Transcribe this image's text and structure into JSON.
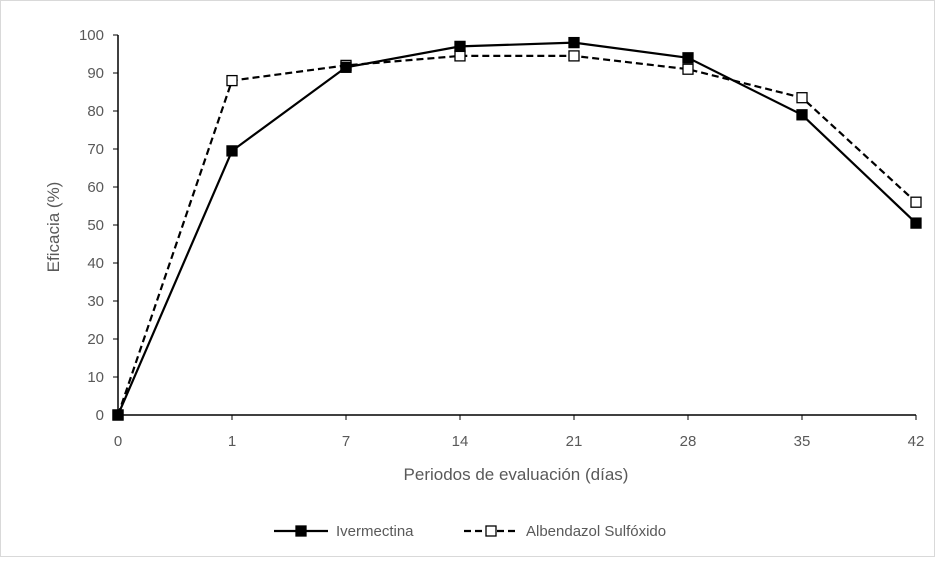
{
  "chart_data": {
    "type": "line",
    "title": "",
    "xlabel": "Periodos de evaluación (días)",
    "ylabel": "Eficacia (%)",
    "x": [
      "0",
      "1",
      "7",
      "14",
      "21",
      "28",
      "35",
      "42"
    ],
    "ylim": [
      0,
      100
    ],
    "yticks": [
      "0",
      "10",
      "20",
      "30",
      "40",
      "50",
      "60",
      "70",
      "80",
      "90",
      "100"
    ],
    "grid": false,
    "legend_position": "bottom",
    "series": [
      {
        "name": "Ivermectina",
        "values": [
          0,
          69.5,
          91.5,
          97,
          98,
          94,
          79,
          50.5
        ],
        "line_style": "solid",
        "marker": "filled-square",
        "color": "#000000"
      },
      {
        "name": "Albendazol Sulfóxido",
        "values": [
          0,
          88,
          92,
          94.5,
          94.5,
          91,
          83.5,
          56
        ],
        "line_style": "dashed",
        "marker": "open-square",
        "color": "#000000"
      }
    ]
  }
}
